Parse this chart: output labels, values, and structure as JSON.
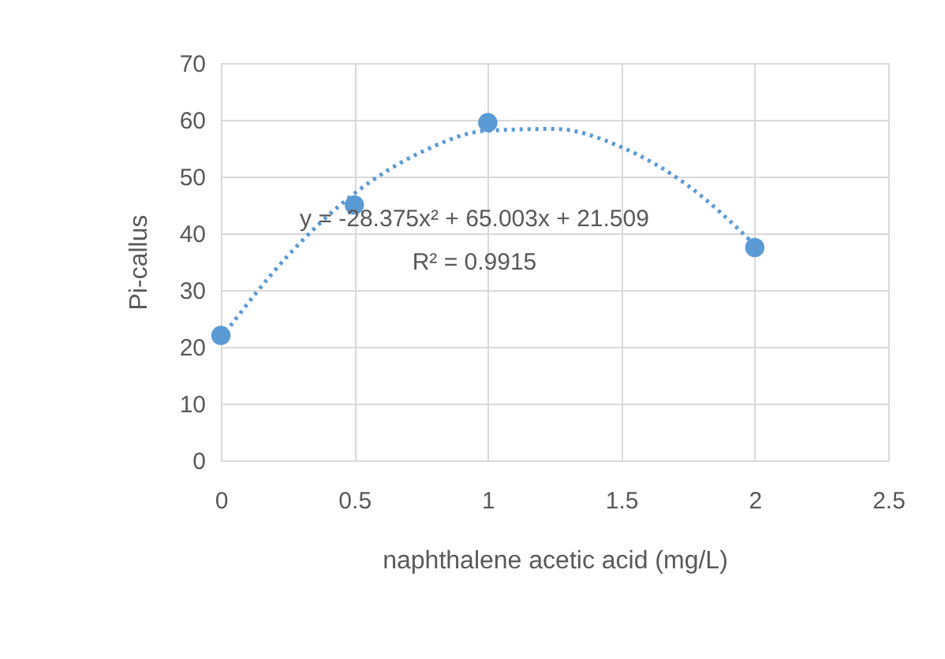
{
  "chart_data": {
    "type": "scatter",
    "xlabel": "naphthalene acetic acid (mg/L)",
    "ylabel": "Pi-callus",
    "xlim": [
      0,
      2.5
    ],
    "xticks": [
      0,
      0.5,
      1,
      1.5,
      2,
      2.5
    ],
    "ylim": [
      0,
      70
    ],
    "yticks": [
      0,
      10,
      20,
      30,
      40,
      50,
      60,
      70
    ],
    "grid": true,
    "marker": "circle",
    "series": [
      {
        "color": "#5b9bd5",
        "x": [
          0,
          0.5,
          1,
          2
        ],
        "values": [
          22,
          45,
          59.5,
          37.5
        ]
      },
      {
        "type": "line",
        "color": "#5b9bd5",
        "line_style": "dotted",
        "marker": "none",
        "x": [
          0,
          0.25,
          0.5,
          0.75,
          1,
          1.25,
          1.5,
          1.75,
          2
        ],
        "values": [
          21.5,
          36.0,
          47.0,
          54.3,
          58.1,
          58.4,
          55.2,
          48.4,
          38.0
        ]
      }
    ],
    "annotations": [
      "y = -28.375x² + 65.003x + 21.509",
      "R² = 0.9915"
    ]
  }
}
